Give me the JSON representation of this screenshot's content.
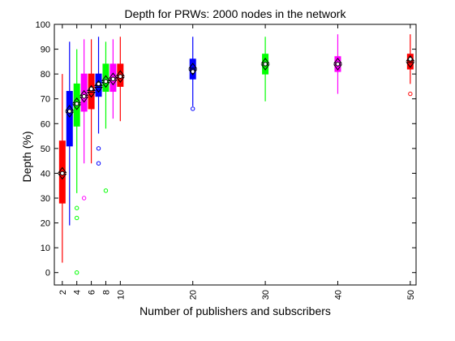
{
  "chart_data": {
    "type": "box",
    "title": "Depth for PRWs: 2000 nodes in the network",
    "xlabel": "Number of publishers and subscribers",
    "ylabel": "Depth (%)",
    "xlim": [
      2,
      50
    ],
    "ylim": [
      -5,
      100
    ],
    "x_ticks": [
      2,
      4,
      6,
      8,
      10,
      20,
      30,
      40,
      50
    ],
    "y_ticks": [
      0,
      10,
      20,
      30,
      40,
      50,
      60,
      70,
      80,
      90,
      100
    ],
    "grid": false,
    "boxes": [
      {
        "x": 2,
        "color": "#ff0000",
        "whisker_low": 4,
        "q1": 28,
        "median": 40,
        "q3": 53,
        "whisker_high": 80,
        "mean": 40,
        "outliers": []
      },
      {
        "x": 3,
        "color": "#0000ff",
        "whisker_low": 19,
        "q1": 51,
        "median": 65,
        "q3": 73,
        "whisker_high": 93,
        "mean": 65,
        "outliers": []
      },
      {
        "x": 4,
        "color": "#00ff00",
        "whisker_low": 32,
        "q1": 59,
        "median": 68,
        "q3": 76,
        "whisker_high": 90,
        "mean": 68,
        "outliers": [
          22,
          26,
          0
        ]
      },
      {
        "x": 5,
        "color": "#ff00ff",
        "whisker_low": 44,
        "q1": 65,
        "median": 71,
        "q3": 80,
        "whisker_high": 94,
        "mean": 71,
        "outliers": [
          30
        ]
      },
      {
        "x": 6,
        "color": "#ff0000",
        "whisker_low": 44,
        "q1": 66,
        "median": 73,
        "q3": 80,
        "whisker_high": 94,
        "mean": 74,
        "outliers": []
      },
      {
        "x": 7,
        "color": "#0000ff",
        "whisker_low": 56,
        "q1": 71,
        "median": 75,
        "q3": 80,
        "whisker_high": 95,
        "mean": 76,
        "outliers": [
          50,
          44
        ]
      },
      {
        "x": 8,
        "color": "#00ff00",
        "whisker_low": 58,
        "q1": 73,
        "median": 77,
        "q3": 84,
        "whisker_high": 93,
        "mean": 77,
        "outliers": [
          33
        ]
      },
      {
        "x": 9,
        "color": "#ff00ff",
        "whisker_low": 62,
        "q1": 73,
        "median": 78,
        "q3": 84,
        "whisker_high": 94,
        "mean": 78,
        "outliers": []
      },
      {
        "x": 10,
        "color": "#ff0000",
        "whisker_low": 61,
        "q1": 75,
        "median": 79,
        "q3": 84,
        "whisker_high": 95,
        "mean": 79,
        "outliers": []
      },
      {
        "x": 20,
        "color": "#0000ff",
        "whisker_low": 67,
        "q1": 78,
        "median": 82,
        "q3": 86,
        "whisker_high": 95,
        "mean": 81,
        "outliers": [
          66
        ]
      },
      {
        "x": 30,
        "color": "#00ff00",
        "whisker_low": 69,
        "q1": 80,
        "median": 84,
        "q3": 88,
        "whisker_high": 95,
        "mean": 84,
        "outliers": []
      },
      {
        "x": 40,
        "color": "#ff00ff",
        "whisker_low": 72,
        "q1": 81,
        "median": 84,
        "q3": 87,
        "whisker_high": 96,
        "mean": 84,
        "outliers": []
      },
      {
        "x": 50,
        "color": "#ff0000",
        "whisker_low": 76,
        "q1": 82,
        "median": 85,
        "q3": 88,
        "whisker_high": 96,
        "mean": 86,
        "outliers": [
          72
        ]
      }
    ]
  }
}
